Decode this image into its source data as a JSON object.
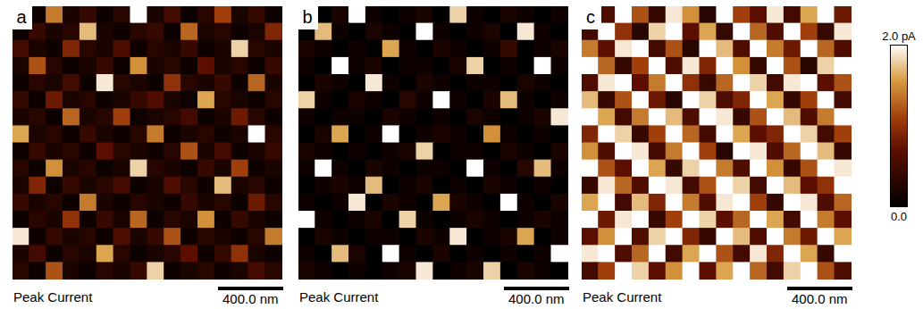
{
  "chart_data": [
    {
      "type": "heatmap",
      "panel": "a",
      "caption": "Peak Current",
      "tick_labels": false,
      "scale_bar": {
        "label": "400.0 nm",
        "length": 400
      },
      "image_size": 1700,
      "cells": [
        [
          0.3,
          0.1,
          1.4,
          0.2,
          0.4,
          0.1,
          0.3,
          2.0,
          0.2,
          0.5,
          0.1,
          0.3,
          1.1,
          0.2,
          0.4,
          0.1
        ],
        [
          0.1,
          0.4,
          0.2,
          0.3,
          1.7,
          0.2,
          0.1,
          0.3,
          0.4,
          0.1,
          1.3,
          0.2,
          0.3,
          0.1,
          0.2,
          0.9
        ],
        [
          0.5,
          0.2,
          0.1,
          0.9,
          0.3,
          0.2,
          0.6,
          0.1,
          0.3,
          0.2,
          0.4,
          0.1,
          0.2,
          1.8,
          0.3,
          0.2
        ],
        [
          0.2,
          1.2,
          0.3,
          0.1,
          0.2,
          0.4,
          0.1,
          1.5,
          0.2,
          0.3,
          0.1,
          0.7,
          0.2,
          0.3,
          0.1,
          0.4
        ],
        [
          0.1,
          0.3,
          0.2,
          0.5,
          0.1,
          1.9,
          0.3,
          0.2,
          0.1,
          1.0,
          0.3,
          0.2,
          0.4,
          0.1,
          1.3,
          0.2
        ],
        [
          0.4,
          0.1,
          0.8,
          0.2,
          0.3,
          0.1,
          0.2,
          0.4,
          0.6,
          0.2,
          0.1,
          1.6,
          0.3,
          0.2,
          0.1,
          0.3
        ],
        [
          0.2,
          0.3,
          0.1,
          1.3,
          0.2,
          0.3,
          1.1,
          0.1,
          0.2,
          0.3,
          0.5,
          0.1,
          0.2,
          0.8,
          0.3,
          0.1
        ],
        [
          1.6,
          0.2,
          0.3,
          0.1,
          0.4,
          0.2,
          0.1,
          0.3,
          1.4,
          0.1,
          0.2,
          0.3,
          0.1,
          0.2,
          2.0,
          0.3
        ],
        [
          0.1,
          0.4,
          0.2,
          0.3,
          0.1,
          0.7,
          0.3,
          0.2,
          0.1,
          0.3,
          1.2,
          0.2,
          0.5,
          0.1,
          0.2,
          0.4
        ],
        [
          0.3,
          0.1,
          1.5,
          0.2,
          0.3,
          0.1,
          0.2,
          1.8,
          0.3,
          0.2,
          0.1,
          0.4,
          0.2,
          1.1,
          0.1,
          0.2
        ],
        [
          0.2,
          0.9,
          0.1,
          0.4,
          0.2,
          0.3,
          0.5,
          0.1,
          0.2,
          0.6,
          0.3,
          0.1,
          1.7,
          0.2,
          0.3,
          0.1
        ],
        [
          0.4,
          0.2,
          0.3,
          0.1,
          1.4,
          0.2,
          0.1,
          0.3,
          0.2,
          0.1,
          0.4,
          0.2,
          0.3,
          0.1,
          0.8,
          0.3
        ],
        [
          0.1,
          0.3,
          0.2,
          1.0,
          0.1,
          0.4,
          0.2,
          1.3,
          0.1,
          0.3,
          0.2,
          1.5,
          0.1,
          0.4,
          0.2,
          0.1
        ],
        [
          1.9,
          0.1,
          0.4,
          0.2,
          0.3,
          0.1,
          0.6,
          0.2,
          0.4,
          1.2,
          0.1,
          0.3,
          0.2,
          0.1,
          0.3,
          1.4
        ],
        [
          0.2,
          0.5,
          0.1,
          0.3,
          0.2,
          1.6,
          0.3,
          0.1,
          0.2,
          0.3,
          0.7,
          0.1,
          0.4,
          1.0,
          0.2,
          0.1
        ],
        [
          0.3,
          0.1,
          1.2,
          0.2,
          0.1,
          0.3,
          0.2,
          0.4,
          1.8,
          0.1,
          0.2,
          0.3,
          0.1,
          0.2,
          0.5,
          0.3
        ]
      ]
    },
    {
      "type": "heatmap",
      "panel": "b",
      "caption": "Peak Current",
      "tick_labels": false,
      "scale_bar": {
        "label": "400.0 nm",
        "length": 400
      },
      "image_size": 1700,
      "cells": [
        [
          0.1,
          0.0,
          0.2,
          2.0,
          0.1,
          0.0,
          0.1,
          0.2,
          0.0,
          1.8,
          0.1,
          0.0,
          0.2,
          0.1,
          0.0,
          0.1
        ],
        [
          0.0,
          1.7,
          0.1,
          0.0,
          0.2,
          0.1,
          0.0,
          2.0,
          0.1,
          0.0,
          0.1,
          0.2,
          0.0,
          1.9,
          0.1,
          0.0
        ],
        [
          0.2,
          0.1,
          0.0,
          0.1,
          0.0,
          1.6,
          0.1,
          0.0,
          0.2,
          0.1,
          0.0,
          0.1,
          0.4,
          0.0,
          0.1,
          0.2
        ],
        [
          0.1,
          0.0,
          2.0,
          0.1,
          0.2,
          0.0,
          0.1,
          0.1,
          0.0,
          0.2,
          1.8,
          0.0,
          0.1,
          0.0,
          2.0,
          0.1
        ],
        [
          0.0,
          0.2,
          0.1,
          0.0,
          1.9,
          0.1,
          0.0,
          0.2,
          0.1,
          0.0,
          0.1,
          0.1,
          0.0,
          0.2,
          0.1,
          0.0
        ],
        [
          1.8,
          0.1,
          0.0,
          0.2,
          0.1,
          0.0,
          0.3,
          0.1,
          2.0,
          0.1,
          0.0,
          0.2,
          1.7,
          0.1,
          0.0,
          0.1
        ],
        [
          0.1,
          0.0,
          0.1,
          0.1,
          0.0,
          0.2,
          0.1,
          0.0,
          0.1,
          0.0,
          0.2,
          0.1,
          0.0,
          0.1,
          0.2,
          1.9
        ],
        [
          0.0,
          0.2,
          1.6,
          0.0,
          0.1,
          2.0,
          0.0,
          0.1,
          0.2,
          0.1,
          0.0,
          1.5,
          0.1,
          0.0,
          0.1,
          0.0
        ],
        [
          0.2,
          0.1,
          0.0,
          0.1,
          0.0,
          0.1,
          0.2,
          1.8,
          0.0,
          0.1,
          0.1,
          0.0,
          0.2,
          0.1,
          0.0,
          0.2
        ],
        [
          0.1,
          2.0,
          0.1,
          0.0,
          0.2,
          0.1,
          0.0,
          0.1,
          0.1,
          0.0,
          2.0,
          0.1,
          0.0,
          0.3,
          1.7,
          0.1
        ],
        [
          0.0,
          0.1,
          0.2,
          0.1,
          1.7,
          0.0,
          0.1,
          0.2,
          0.0,
          0.1,
          0.0,
          0.2,
          0.1,
          0.0,
          0.1,
          0.0
        ],
        [
          0.1,
          0.0,
          0.1,
          1.9,
          0.0,
          0.2,
          0.1,
          0.0,
          1.6,
          0.2,
          0.1,
          0.0,
          2.0,
          0.1,
          0.0,
          0.2
        ],
        [
          2.0,
          0.1,
          0.0,
          0.1,
          0.2,
          0.0,
          1.8,
          0.1,
          0.0,
          0.1,
          0.2,
          0.1,
          0.0,
          0.1,
          0.2,
          0.1
        ],
        [
          0.0,
          0.2,
          0.1,
          0.0,
          0.1,
          0.1,
          0.0,
          0.2,
          0.1,
          1.9,
          0.0,
          0.1,
          0.2,
          1.6,
          0.0,
          0.1
        ],
        [
          0.1,
          0.0,
          1.7,
          0.2,
          0.0,
          2.0,
          0.1,
          0.0,
          0.2,
          0.0,
          0.1,
          0.0,
          0.1,
          0.0,
          0.1,
          2.0
        ],
        [
          0.2,
          0.1,
          0.0,
          0.1,
          0.0,
          0.1,
          0.2,
          1.9,
          0.0,
          0.1,
          0.2,
          1.8,
          0.0,
          0.2,
          0.1,
          0.0
        ]
      ]
    },
    {
      "type": "heatmap",
      "panel": "c",
      "caption": "Peak Current",
      "tick_labels": false,
      "scale_bar": {
        "label": "400.0 nm",
        "length": 400
      },
      "image_size": 1700,
      "cells": [
        [
          1.8,
          0.6,
          2.0,
          1.2,
          0.4,
          1.9,
          1.5,
          0.3,
          2.0,
          1.1,
          0.7,
          1.9,
          0.5,
          1.6,
          2.0,
          0.8
        ],
        [
          0.5,
          2.0,
          1.0,
          0.3,
          1.8,
          2.0,
          0.7,
          1.6,
          0.4,
          2.0,
          1.3,
          0.6,
          2.0,
          1.1,
          0.4,
          1.9
        ],
        [
          1.4,
          0.7,
          1.9,
          2.0,
          0.5,
          1.2,
          0.3,
          2.0,
          1.7,
          0.6,
          2.0,
          1.4,
          0.8,
          2.0,
          1.3,
          0.6
        ],
        [
          2.0,
          1.3,
          0.4,
          1.1,
          2.0,
          0.6,
          1.9,
          0.9,
          2.0,
          1.5,
          0.4,
          2.0,
          1.2,
          0.3,
          1.8,
          2.0
        ],
        [
          0.6,
          1.9,
          2.0,
          0.7,
          1.4,
          2.0,
          1.0,
          0.4,
          1.3,
          2.0,
          1.8,
          0.5,
          1.9,
          2.0,
          0.7,
          1.2
        ],
        [
          1.7,
          0.4,
          1.2,
          2.0,
          0.8,
          0.3,
          2.0,
          1.8,
          0.6,
          0.9,
          2.0,
          1.6,
          0.4,
          1.1,
          2.0,
          0.5
        ],
        [
          2.0,
          1.6,
          0.5,
          1.4,
          2.0,
          1.7,
          0.6,
          2.0,
          1.9,
          0.4,
          1.2,
          2.0,
          1.7,
          0.6,
          1.4,
          2.0
        ],
        [
          0.9,
          2.0,
          1.8,
          0.4,
          1.1,
          2.0,
          1.3,
          0.5,
          2.0,
          1.6,
          0.7,
          0.9,
          2.0,
          1.8,
          0.5,
          1.1
        ],
        [
          1.5,
          0.6,
          2.0,
          1.9,
          0.5,
          1.4,
          2.0,
          1.1,
          0.3,
          2.0,
          1.9,
          0.6,
          1.3,
          2.0,
          1.7,
          0.4
        ],
        [
          2.0,
          1.2,
          0.7,
          2.0,
          1.6,
          0.4,
          1.8,
          2.0,
          1.4,
          0.6,
          2.0,
          1.5,
          0.4,
          1.2,
          2.0,
          1.9
        ],
        [
          0.4,
          1.9,
          1.3,
          0.6,
          2.0,
          1.9,
          0.5,
          1.2,
          2.0,
          1.8,
          0.5,
          2.0,
          1.7,
          0.7,
          1.0,
          2.0
        ],
        [
          1.6,
          2.0,
          0.5,
          1.7,
          0.9,
          2.0,
          1.4,
          0.6,
          1.9,
          2.0,
          1.1,
          0.4,
          2.0,
          1.9,
          0.6,
          1.3
        ],
        [
          2.0,
          0.8,
          1.9,
          2.0,
          0.4,
          1.1,
          2.0,
          1.8,
          0.7,
          1.3,
          2.0,
          1.6,
          0.5,
          2.0,
          1.4,
          0.7
        ],
        [
          0.7,
          1.5,
          2.0,
          0.6,
          1.8,
          2.0,
          0.9,
          0.4,
          2.0,
          1.7,
          0.6,
          2.0,
          1.4,
          0.8,
          2.0,
          1.6
        ],
        [
          1.9,
          2.0,
          0.6,
          1.3,
          2.0,
          0.5,
          1.6,
          2.0,
          1.2,
          0.5,
          1.9,
          0.9,
          2.0,
          1.6,
          0.4,
          2.0
        ],
        [
          0.5,
          1.1,
          2.0,
          1.8,
          0.7,
          1.5,
          2.0,
          0.7,
          1.6,
          2.0,
          1.3,
          0.5,
          1.8,
          2.0,
          1.2,
          0.6
        ]
      ]
    }
  ],
  "colorbar": {
    "range": [
      0,
      2
    ],
    "ticks": [
      {
        "value": 2,
        "label": "2.0 pA"
      },
      {
        "value": 0,
        "label": "0.0"
      }
    ]
  }
}
